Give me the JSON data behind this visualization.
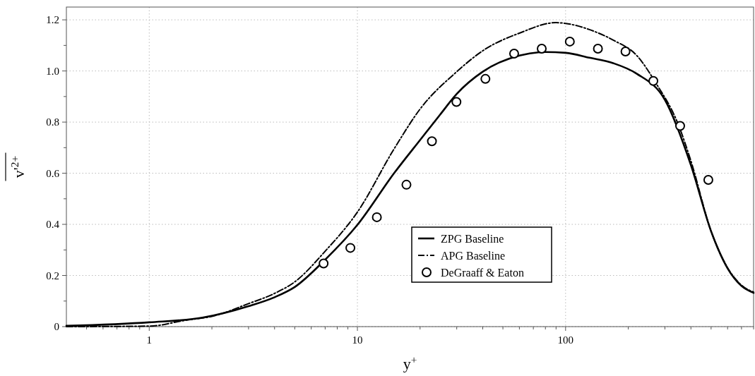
{
  "chart_data": {
    "type": "line",
    "xlabel": "y$^{+}$",
    "ylabel": "v'$^{2+}$",
    "log": "x",
    "grid": true,
    "legend": "bottom",
    "xlim": [
      0.4,
      800
    ],
    "ylim": [
      0,
      1.25
    ],
    "xticks": [
      {
        "value": 0.5,
        "label": null
      },
      {
        "value": 0.6,
        "label": null
      },
      {
        "value": 0.7,
        "label": null
      },
      {
        "value": 0.8,
        "label": null
      },
      {
        "value": 0.9,
        "label": null
      },
      1,
      {
        "value": 2,
        "label": null
      },
      {
        "value": 3,
        "label": null
      },
      {
        "value": 4,
        "label": null
      },
      {
        "value": 5,
        "label": null
      },
      {
        "value": 6,
        "label": null
      },
      {
        "value": 7,
        "label": null
      },
      {
        "value": 8,
        "label": null
      },
      {
        "value": 9,
        "label": null
      },
      10,
      {
        "value": 20,
        "label": null
      },
      {
        "value": 30,
        "label": null
      },
      {
        "value": 40,
        "label": null
      },
      {
        "value": 50,
        "label": null
      },
      {
        "value": 60,
        "label": null
      },
      {
        "value": 70,
        "label": null
      },
      {
        "value": 80,
        "label": null
      },
      {
        "value": 90,
        "label": null
      },
      100,
      {
        "value": 200,
        "label": null
      },
      {
        "value": 300,
        "label": null
      },
      {
        "value": 400,
        "label": null
      },
      {
        "value": 500,
        "label": null
      },
      {
        "value": 600,
        "label": null
      },
      {
        "value": 700,
        "label": null
      },
      {
        "value": 800,
        "label": null
      }
    ],
    "yticks": [
      0,
      {
        "value": 0.1,
        "label": null
      },
      0.2,
      {
        "value": 0.3,
        "label": null
      },
      0.4,
      {
        "value": 0.5,
        "label": null
      },
      0.6,
      {
        "value": 0.7,
        "label": null
      },
      0.8,
      {
        "value": 0.9,
        "label": null
      },
      {
        "value": 1,
        "label": "1.0"
      },
      {
        "value": 1.1,
        "label": null
      },
      1.2
    ],
    "series": [
      {
        "name": "ZPG Baseline",
        "color": "#000000",
        "line_style": "solid",
        "x": [
          0.4,
          1,
          1.8,
          3,
          4,
          5,
          7,
          10,
          15,
          20,
          25,
          30,
          40,
          60,
          80,
          100,
          130,
          170,
          220,
          300,
          400,
          500,
          600,
          700,
          800
        ],
        "values": [
          0.003,
          0.017,
          0.035,
          0.08,
          0.115,
          0.155,
          0.262,
          0.398,
          0.6,
          0.73,
          0.83,
          0.91,
          0.997,
          1.06,
          1.074,
          1.071,
          1.052,
          1.03,
          0.989,
          0.887,
          0.632,
          0.373,
          0.228,
          0.159,
          0.132
        ]
      },
      {
        "name": "APG Baseline",
        "color": "#000000",
        "line_style": "dashed",
        "x": [
          0.4,
          1,
          1.5,
          2,
          3,
          4,
          5,
          7,
          10,
          15,
          20,
          30,
          40,
          60,
          90,
          100,
          130,
          170,
          220,
          270,
          350,
          400,
          500,
          600,
          700,
          800
        ],
        "values": [
          0,
          0.002,
          0.025,
          0.04,
          0.09,
          0.13,
          0.175,
          0.295,
          0.448,
          0.695,
          0.851,
          0.997,
          1.079,
          1.148,
          1.189,
          1.186,
          1.162,
          1.12,
          1.06,
          0.956,
          0.785,
          0.648,
          0.373,
          0.23,
          0.162,
          0.135
        ]
      },
      {
        "name": "DeGraaff & Eaton",
        "type": "scatter",
        "color": "#000000",
        "marker": "circle",
        "x": [
          6.88,
          9.25,
          12.4,
          17.2,
          22.8,
          29.9,
          41.2,
          56.6,
          76.8,
          104.8,
          143,
          194,
          264,
          355,
          485
        ],
        "values": [
          0.247,
          0.308,
          0.428,
          0.555,
          0.725,
          0.879,
          0.969,
          1.068,
          1.087,
          1.115,
          1.087,
          1.076,
          0.961,
          0.785,
          0.574
        ]
      }
    ]
  }
}
